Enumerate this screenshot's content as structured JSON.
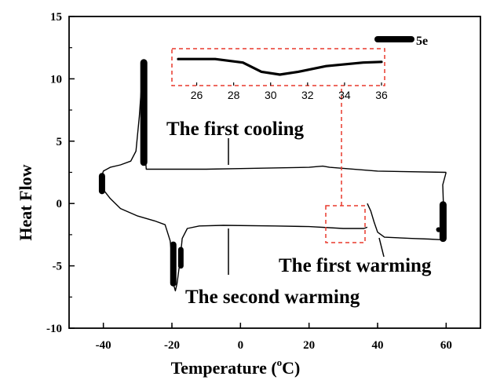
{
  "chart_data": {
    "type": "line",
    "xlabel_main": "Temperature (",
    "xlabel_sup": "o",
    "xlabel_end": "C)",
    "ylabel": "Heat Flow",
    "xlim": [
      -50,
      70
    ],
    "ylim": [
      -10,
      15
    ],
    "x_ticks": [
      "-40",
      "-20",
      "0",
      "20",
      "40",
      "60"
    ],
    "x_tick_values": [
      -40,
      -20,
      0,
      20,
      40,
      60
    ],
    "y_ticks": [
      "-10",
      "-5",
      "0",
      "5",
      "10",
      "15"
    ],
    "y_tick_values": [
      -10,
      -5,
      0,
      5,
      10,
      15
    ],
    "legend": {
      "label": "5e",
      "placement": "top-right"
    },
    "annotations": {
      "first_cooling": "The first cooling",
      "first_warming": "The first warming",
      "second_warming": "The second warming"
    },
    "series": [
      {
        "name": "5e",
        "segments": [
          {
            "id": "first-cooling",
            "points": [
              [
                60,
                2.5
              ],
              [
                40,
                2.6
              ],
              [
                26,
                2.9
              ],
              [
                24,
                3.0
              ],
              [
                20,
                2.9
              ],
              [
                0,
                2.8
              ],
              [
                -10,
                2.75
              ],
              [
                -27.5,
                2.75
              ],
              [
                -27.8,
                4
              ],
              [
                -28.0,
                7
              ],
              [
                -28.1,
                10
              ],
              [
                -28.2,
                11.3
              ],
              [
                -28.6,
                10.5
              ],
              [
                -29.5,
                7
              ],
              [
                -30.5,
                4.2
              ],
              [
                -32,
                3.4
              ],
              [
                -35,
                3.1
              ],
              [
                -38,
                2.9
              ],
              [
                -40,
                2.6
              ],
              [
                -41,
                1.8
              ],
              [
                -40,
                1.1
              ],
              [
                -38,
                0.4
              ],
              [
                -35,
                -0.4
              ],
              [
                -30,
                -1.0
              ],
              [
                -25,
                -1.4
              ],
              [
                -22,
                -1.7
              ],
              [
                -20.5,
                -3.0
              ],
              [
                -19.8,
                -5.0
              ],
              [
                -19.4,
                -6.6
              ],
              [
                -19,
                -7.0
              ],
              [
                -18.5,
                -6.4
              ],
              [
                -17.6,
                -4.5
              ],
              [
                -17,
                -2.8
              ],
              [
                -15.5,
                -2.0
              ],
              [
                -12,
                -1.8
              ],
              [
                -5,
                -1.75
              ],
              [
                10,
                -1.8
              ],
              [
                20,
                -1.85
              ],
              [
                30,
                -2.0
              ],
              [
                36,
                -2.0
              ],
              [
                37,
                -1.9
              ]
            ]
          },
          {
            "id": "first-warming",
            "points": [
              [
                37,
                0.0
              ],
              [
                38,
                -0.6
              ],
              [
                39,
                -1.5
              ],
              [
                40,
                -2.3
              ],
              [
                42,
                -2.7
              ],
              [
                50,
                -2.8
              ],
              [
                55,
                -2.85
              ],
              [
                58.5,
                -2.9
              ],
              [
                59,
                -2.0
              ],
              [
                59.2,
                0
              ],
              [
                59,
                1.5
              ],
              [
                60,
                2.5
              ]
            ]
          }
        ]
      }
    ],
    "inset": {
      "xlim": [
        25,
        36
      ],
      "x_ticks": [
        "26",
        "28",
        "30",
        "32",
        "34",
        "36"
      ],
      "x_tick_values": [
        26,
        28,
        30,
        32,
        34,
        36
      ],
      "points": [
        [
          25,
          -1.8
        ],
        [
          27,
          -1.8
        ],
        [
          28.5,
          -1.85
        ],
        [
          29.5,
          -1.98
        ],
        [
          30.5,
          -2.02
        ],
        [
          31.5,
          -1.98
        ],
        [
          33,
          -1.9
        ],
        [
          35,
          -1.85
        ],
        [
          36,
          -1.84
        ]
      ]
    },
    "colors": {
      "curve": "#000000",
      "callout": "#e8392c",
      "axis": "#000000"
    }
  }
}
